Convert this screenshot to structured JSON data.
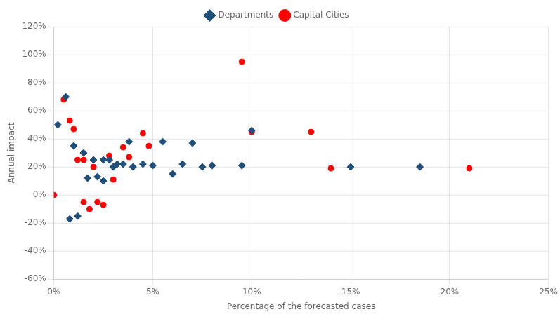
{
  "chart_data": {
    "type": "scatter",
    "xlabel": "Percentage of the forecasted cases",
    "ylabel": "Annual impact",
    "series": [
      {
        "name": "Departments",
        "color": "#1f4e79",
        "marker": "diamond",
        "x": [
          0.002,
          0.006,
          0.008,
          0.01,
          0.012,
          0.015,
          0.017,
          0.02,
          0.022,
          0.025,
          0.025,
          0.028,
          0.03,
          0.032,
          0.035,
          0.038,
          0.04,
          0.045,
          0.05,
          0.055,
          0.06,
          0.065,
          0.07,
          0.075,
          0.08,
          0.095,
          0.1,
          0.15,
          0.185
        ],
        "values": [
          0.5,
          0.7,
          -0.17,
          0.35,
          -0.15,
          0.3,
          0.12,
          0.25,
          0.13,
          0.25,
          0.1,
          0.25,
          0.2,
          0.22,
          0.22,
          0.38,
          0.2,
          0.22,
          0.21,
          0.38,
          0.15,
          0.22,
          0.37,
          0.2,
          0.21,
          0.21,
          0.46,
          0.2,
          0.2
        ]
      },
      {
        "name": "Capital Cities",
        "color": "#ff0000",
        "marker": "circle",
        "x": [
          0.0,
          0.005,
          0.008,
          0.01,
          0.012,
          0.015,
          0.015,
          0.018,
          0.02,
          0.022,
          0.025,
          0.028,
          0.03,
          0.035,
          0.038,
          0.045,
          0.048,
          0.095,
          0.1,
          0.13,
          0.14,
          0.21
        ],
        "values": [
          0.0,
          0.68,
          0.53,
          0.47,
          0.25,
          0.25,
          -0.05,
          -0.1,
          0.2,
          -0.05,
          -0.07,
          0.28,
          0.11,
          0.34,
          0.27,
          0.44,
          0.35,
          0.95,
          0.45,
          0.45,
          0.19,
          0.19
        ]
      }
    ],
    "xlim": [
      0,
      0.25
    ],
    "ylim": [
      -0.6,
      1.2
    ],
    "xticks": [
      {
        "value": 0.0,
        "label": "0%"
      },
      {
        "value": 0.05,
        "label": "5%"
      },
      {
        "value": 0.1,
        "label": "10%"
      },
      {
        "value": 0.15,
        "label": "15%"
      },
      {
        "value": 0.2,
        "label": "20%"
      },
      {
        "value": 0.25,
        "label": "25%"
      }
    ],
    "yticks": [
      {
        "value": -0.6,
        "label": "-60%"
      },
      {
        "value": -0.4,
        "label": "-40%"
      },
      {
        "value": -0.2,
        "label": "-20%"
      },
      {
        "value": 0.0,
        "label": "0%"
      },
      {
        "value": 0.2,
        "label": "20%"
      },
      {
        "value": 0.4,
        "label": "40%"
      },
      {
        "value": 0.6,
        "label": "60%"
      },
      {
        "value": 0.8,
        "label": "80%"
      },
      {
        "value": 1.0,
        "label": "100%"
      },
      {
        "value": 1.2,
        "label": "120%"
      }
    ],
    "grid": true,
    "legend": "top"
  }
}
